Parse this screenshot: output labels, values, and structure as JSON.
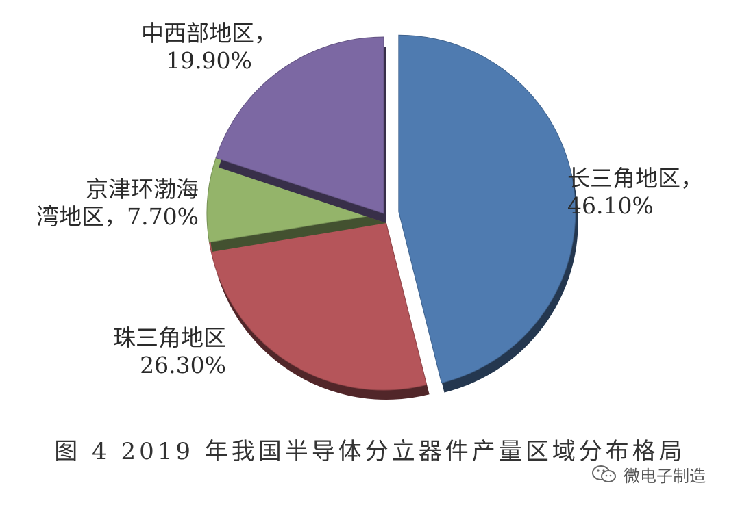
{
  "chart_data": {
    "type": "pie",
    "title": "图 4  2019 年我国半导体分立器件产量区域分布格局",
    "slices": [
      {
        "name": "长三角地区",
        "value": 46.1,
        "label_line1": "长三角地区，",
        "label_line2": "46.10%",
        "color": "#4f7bb0",
        "exploded": true
      },
      {
        "name": "珠三角地区",
        "value": 26.3,
        "label_line1": "珠三角地区",
        "label_line2": "26.30%",
        "color": "#b5555a",
        "exploded": false
      },
      {
        "name": "京津环渤海湾地区",
        "value": 7.7,
        "label_line1": "京津环渤海",
        "label_line2": "湾地区，7.70%",
        "color": "#94b46a",
        "exploded": false
      },
      {
        "name": "中西部地区",
        "value": 19.9,
        "label_line1": "中西部地区，",
        "label_line2": "19.90%",
        "color": "#7c68a3",
        "exploded": false
      }
    ]
  },
  "watermark": {
    "text": "微电子制造",
    "icon": "wechat-icon"
  }
}
